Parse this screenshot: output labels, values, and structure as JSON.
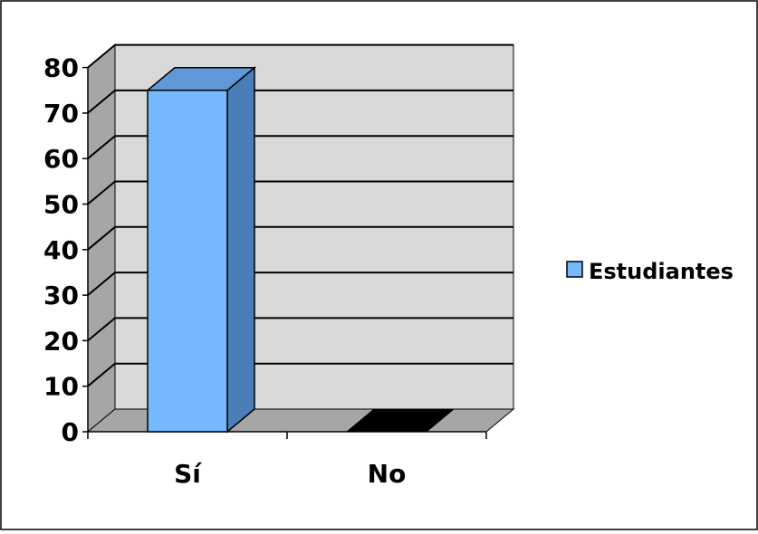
{
  "chart_data": {
    "type": "bar",
    "title": "",
    "xlabel": "",
    "ylabel": "",
    "categories": [
      "Sí",
      "No"
    ],
    "series": [
      {
        "name": "Estudiantes",
        "values": [
          75,
          0
        ]
      }
    ],
    "ylim": [
      0,
      80
    ],
    "yticks": [
      "0",
      "10",
      "20",
      "30",
      "40",
      "50",
      "60",
      "70",
      "80"
    ],
    "grid": true,
    "legend_position": "right",
    "colors": {
      "bar_front": "#75B8FF",
      "bar_side": "#4A7EB8",
      "bar_top": "#6098D8",
      "wall": "#D9D9D9",
      "side_wall": "#A6A6A6",
      "floor": "#A6A6A6",
      "zero_bar": "#000000"
    }
  }
}
